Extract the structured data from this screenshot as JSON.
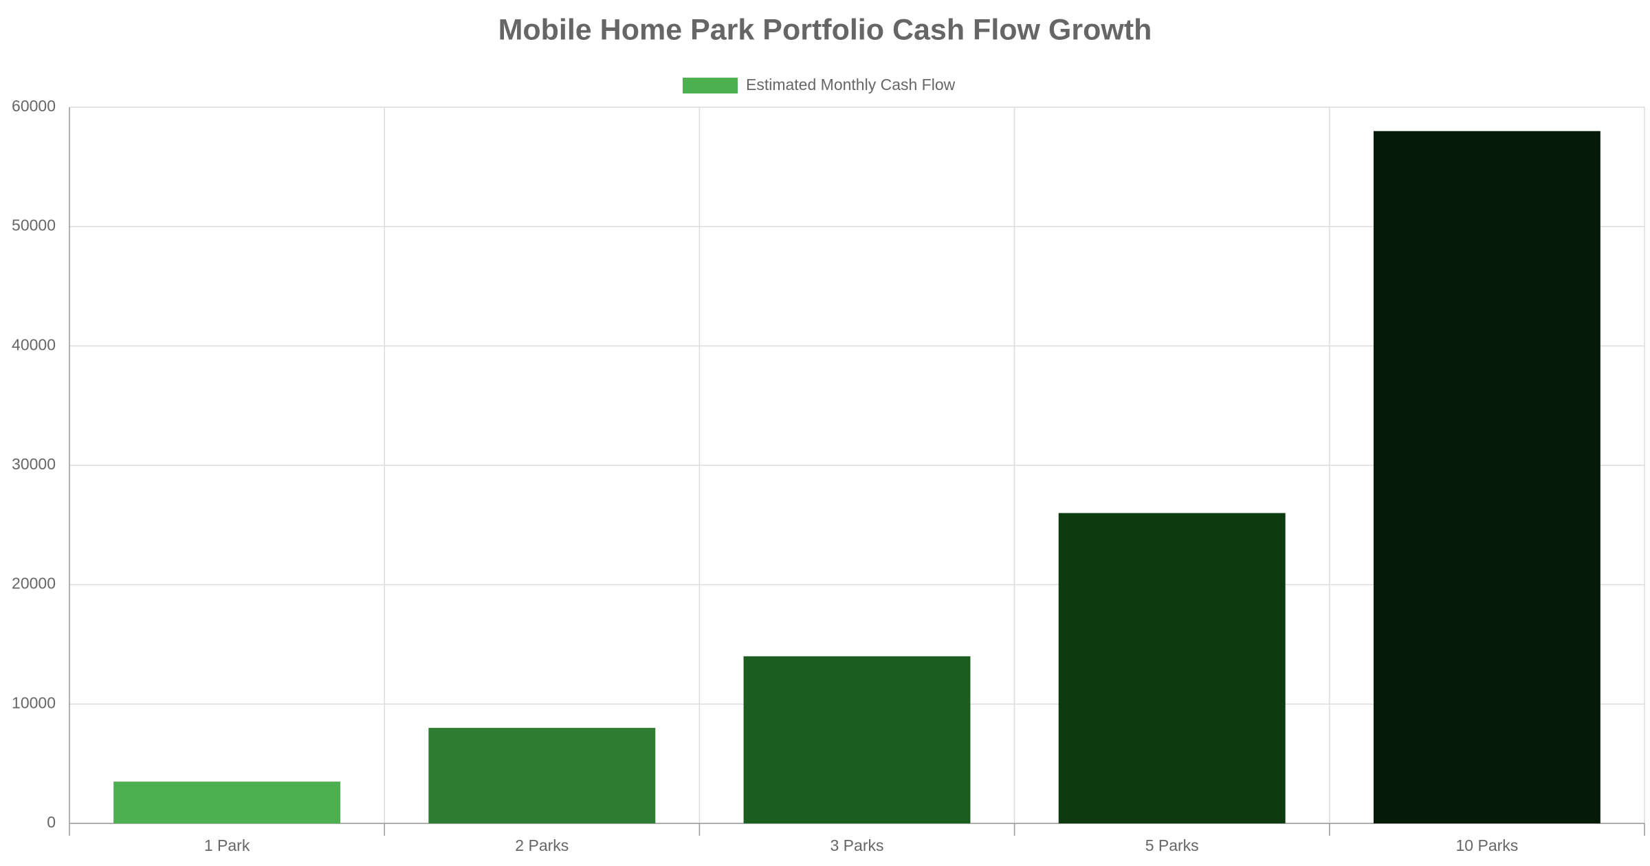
{
  "chart_data": {
    "type": "bar",
    "title": "Mobile Home Park Portfolio Cash Flow Growth",
    "categories": [
      "1 Park",
      "2 Parks",
      "3 Parks",
      "5 Parks",
      "10 Parks"
    ],
    "series": [
      {
        "name": "Estimated Monthly Cash Flow",
        "color": "#4caf50",
        "colors": [
          "#4caf50",
          "#2e7d32",
          "#1b5e20",
          "#0d3b0f",
          "#051a07"
        ],
        "values": [
          3500,
          8000,
          14000,
          26000,
          58000
        ]
      }
    ],
    "ylim": [
      0,
      60000
    ],
    "yticks": [
      0,
      10000,
      20000,
      30000,
      40000,
      50000,
      60000
    ],
    "grid": true,
    "legend": "top"
  }
}
